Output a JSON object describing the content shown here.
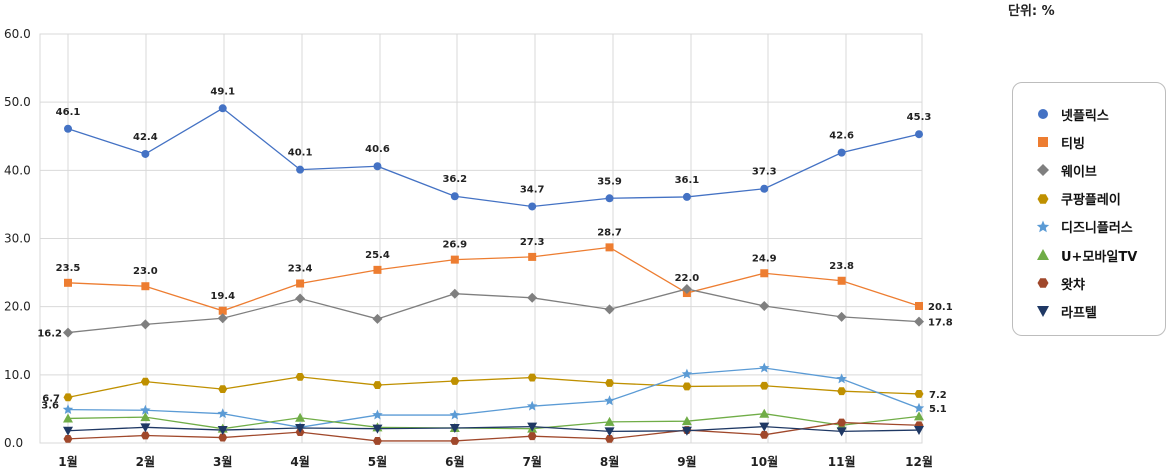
{
  "unit_label": "단위: %",
  "chart_data": {
    "type": "line",
    "categories": [
      "1월",
      "2월",
      "3월",
      "4월",
      "5월",
      "6월",
      "7월",
      "8월",
      "9월",
      "10월",
      "11월",
      "12월"
    ],
    "ylim": [
      0,
      60
    ],
    "yticks": [
      "0.0",
      "10.0",
      "20.0",
      "30.0",
      "40.0",
      "50.0",
      "60.0"
    ],
    "grid": true,
    "legend_position": "right",
    "series": [
      {
        "name": "넷플릭스",
        "color": "#4472c4",
        "marker": "circle",
        "values": [
          46.1,
          42.4,
          49.1,
          40.1,
          40.6,
          36.2,
          34.7,
          35.9,
          36.1,
          37.3,
          42.6,
          45.3
        ],
        "labels": [
          "46.1",
          "42.4",
          "49.1",
          "40.1",
          "40.6",
          "36.2",
          "34.7",
          "35.9",
          "36.1",
          "37.3",
          "42.6",
          "45.3"
        ]
      },
      {
        "name": "티빙",
        "color": "#ed7d31",
        "marker": "square",
        "values": [
          23.5,
          23.0,
          19.4,
          23.4,
          25.4,
          26.9,
          27.3,
          28.7,
          22.0,
          24.9,
          23.8,
          20.1
        ],
        "labels": [
          "23.5",
          "23.0",
          "19.4",
          "23.4",
          "25.4",
          "26.9",
          "27.3",
          "28.7",
          "22.0",
          "24.9",
          "23.8",
          "20.1"
        ]
      },
      {
        "name": "웨이브",
        "color": "#7f7f7f",
        "marker": "diamond",
        "values": [
          16.2,
          17.4,
          18.3,
          21.2,
          18.2,
          21.9,
          21.3,
          19.6,
          22.6,
          20.1,
          18.5,
          17.8
        ],
        "labels": [
          "16.2",
          "",
          "",
          "",
          "",
          "",
          "",
          "",
          "",
          "",
          "",
          "17.8"
        ]
      },
      {
        "name": "쿠팡플레이",
        "color": "#bf9000",
        "marker": "hexagon",
        "values": [
          6.7,
          9.0,
          7.9,
          9.7,
          8.5,
          9.1,
          9.6,
          8.8,
          8.3,
          8.4,
          7.6,
          7.2
        ],
        "labels": [
          "6.7",
          "",
          "",
          "",
          "",
          "",
          "",
          "",
          "",
          "",
          "",
          "7.2"
        ]
      },
      {
        "name": "디즈니플러스",
        "color": "#5b9bd5",
        "marker": "star",
        "values": [
          4.9,
          4.8,
          4.3,
          2.3,
          4.1,
          4.1,
          5.4,
          6.2,
          10.1,
          11.0,
          9.4,
          5.1
        ],
        "labels": [
          "",
          "",
          "",
          "",
          "",
          "",
          "",
          "",
          "",
          "",
          "",
          "5.1"
        ]
      },
      {
        "name": "U+모바일TV",
        "color": "#70ad47",
        "marker": "triangle",
        "values": [
          3.6,
          3.8,
          2.1,
          3.7,
          2.3,
          2.2,
          2.1,
          3.1,
          3.2,
          4.3,
          2.6,
          3.9
        ],
        "labels": [
          "3.6",
          "",
          "",
          "",
          "",
          "",
          "",
          "",
          "",
          "",
          "",
          ""
        ]
      },
      {
        "name": "왓챠",
        "color": "#a0482b",
        "marker": "hexagon",
        "values": [
          0.6,
          1.1,
          0.8,
          1.6,
          0.3,
          0.3,
          1.0,
          0.6,
          1.9,
          1.2,
          3.0,
          2.6
        ],
        "labels": [
          "",
          "",
          "",
          "",
          "",
          "",
          "",
          "",
          "",
          "",
          "",
          ""
        ]
      },
      {
        "name": "라프텔",
        "color": "#1f3864",
        "marker": "triangle-down",
        "values": [
          1.8,
          2.3,
          1.9,
          2.2,
          2.1,
          2.2,
          2.4,
          1.7,
          1.8,
          2.4,
          1.7,
          1.9
        ],
        "labels": [
          "",
          "",
          "",
          "",
          "",
          "",
          "",
          "",
          "",
          "",
          "",
          ""
        ]
      }
    ]
  }
}
